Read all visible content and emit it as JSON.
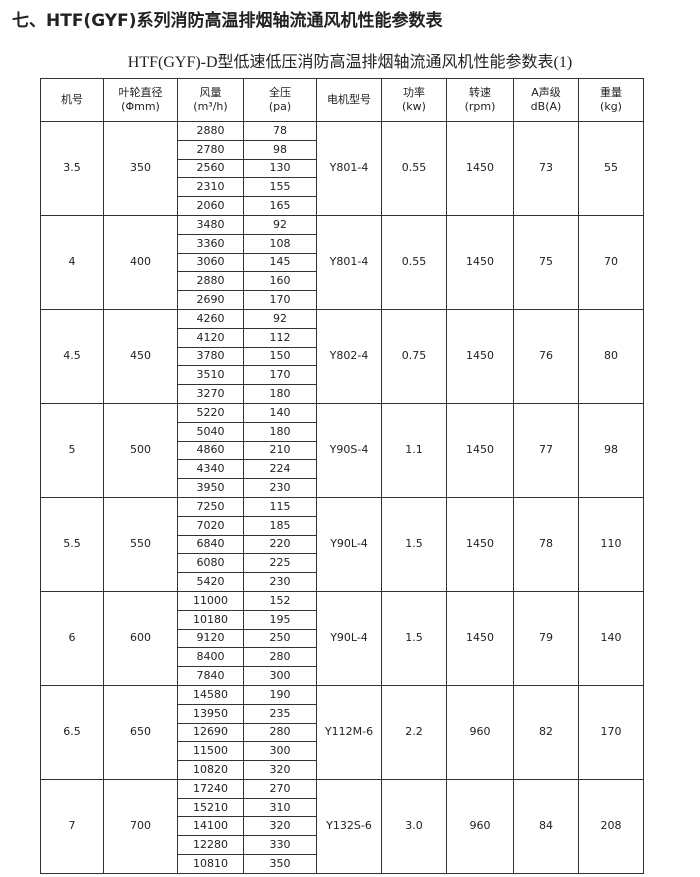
{
  "title": "七、HTF(GYF)系列消防高温排烟轴流通风机性能参数表",
  "subtitle": "HTF(GYF)-D型低速低压消防高温排烟轴流通风机性能参数表(1)",
  "table": {
    "header": [
      [
        "机号"
      ],
      [
        "叶轮直径",
        "(Φmm)"
      ],
      [
        "风量",
        "(m³/h)"
      ],
      [
        "全压",
        "(pa)"
      ],
      [
        "电机型号"
      ],
      [
        "功率",
        "(kw)"
      ],
      [
        "转速",
        "(rpm)"
      ],
      [
        "A声级",
        "dB(A)"
      ],
      [
        "重量",
        "(kg)"
      ]
    ],
    "groups": [
      {
        "no": "3.5",
        "diameter": "350",
        "rows": [
          [
            "2880",
            "78"
          ],
          [
            "2780",
            "98"
          ],
          [
            "2560",
            "130"
          ],
          [
            "2310",
            "155"
          ],
          [
            "2060",
            "165"
          ]
        ],
        "motor": "Y801-4",
        "power": "0.55",
        "speed": "1450",
        "noise": "73",
        "weight": "55"
      },
      {
        "no": "4",
        "diameter": "400",
        "rows": [
          [
            "3480",
            "92"
          ],
          [
            "3360",
            "108"
          ],
          [
            "3060",
            "145"
          ],
          [
            "2880",
            "160"
          ],
          [
            "2690",
            "170"
          ]
        ],
        "motor": "Y801-4",
        "power": "0.55",
        "speed": "1450",
        "noise": "75",
        "weight": "70"
      },
      {
        "no": "4.5",
        "diameter": "450",
        "rows": [
          [
            "4260",
            "92"
          ],
          [
            "4120",
            "112"
          ],
          [
            "3780",
            "150"
          ],
          [
            "3510",
            "170"
          ],
          [
            "3270",
            "180"
          ]
        ],
        "motor": "Y802-4",
        "power": "0.75",
        "speed": "1450",
        "noise": "76",
        "weight": "80"
      },
      {
        "no": "5",
        "diameter": "500",
        "rows": [
          [
            "5220",
            "140"
          ],
          [
            "5040",
            "180"
          ],
          [
            "4860",
            "210"
          ],
          [
            "4340",
            "224"
          ],
          [
            "3950",
            "230"
          ]
        ],
        "motor": "Y90S-4",
        "power": "1.1",
        "speed": "1450",
        "noise": "77",
        "weight": "98"
      },
      {
        "no": "5.5",
        "diameter": "550",
        "rows": [
          [
            "7250",
            "115"
          ],
          [
            "7020",
            "185"
          ],
          [
            "6840",
            "220"
          ],
          [
            "6080",
            "225"
          ],
          [
            "5420",
            "230"
          ]
        ],
        "motor": "Y90L-4",
        "power": "1.5",
        "speed": "1450",
        "noise": "78",
        "weight": "110"
      },
      {
        "no": "6",
        "diameter": "600",
        "rows": [
          [
            "11000",
            "152"
          ],
          [
            "10180",
            "195"
          ],
          [
            "9120",
            "250"
          ],
          [
            "8400",
            "280"
          ],
          [
            "7840",
            "300"
          ]
        ],
        "motor": "Y90L-4",
        "power": "1.5",
        "speed": "1450",
        "noise": "79",
        "weight": "140"
      },
      {
        "no": "6.5",
        "diameter": "650",
        "rows": [
          [
            "14580",
            "190"
          ],
          [
            "13950",
            "235"
          ],
          [
            "12690",
            "280"
          ],
          [
            "11500",
            "300"
          ],
          [
            "10820",
            "320"
          ]
        ],
        "motor": "Y112M-6",
        "power": "2.2",
        "speed": "960",
        "noise": "82",
        "weight": "170"
      },
      {
        "no": "7",
        "diameter": "700",
        "rows": [
          [
            "17240",
            "270"
          ],
          [
            "15210",
            "310"
          ],
          [
            "14100",
            "320"
          ],
          [
            "12280",
            "330"
          ],
          [
            "10810",
            "350"
          ]
        ],
        "motor": "Y132S-6",
        "power": "3.0",
        "speed": "960",
        "noise": "84",
        "weight": "208"
      }
    ]
  }
}
